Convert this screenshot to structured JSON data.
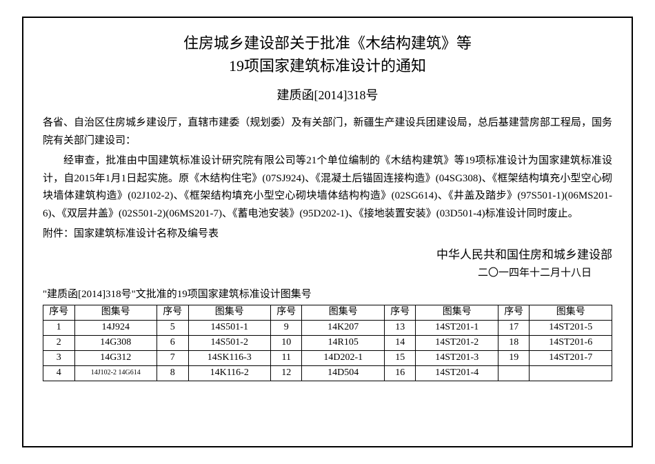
{
  "title": {
    "line1": "住房城乡建设部关于批准《木结构建筑》等",
    "line2": "19项国家建筑标准设计的通知"
  },
  "doc_number": "建质函[2014]318号",
  "recipients": "各省、自治区住房城乡建设厅，直辖市建委（规划委）及有关部门，新疆生产建设兵团建设局，总后基建营房部工程局，国务院有关部门建设司：",
  "body": "经审查，批准由中国建筑标准设计研究院有限公司等21个单位编制的《木结构建筑》等19项标准设计为国家建筑标准设计，自2015年1月1日起实施。原《木结构住宅》(07SJ924)、《混凝土后锚固连接构造》(04SG308)、《框架结构填充小型空心砌块墙体建筑构造》(02J102-2)、《框架结构填充小型空心砌块墙体结构构造》(02SG614)、《井盖及踏步》(97S501-1)(06MS201-6)、《双层井盖》(02S501-2)(06MS201-7)、《蓄电池安装》(95D202-1)、《接地装置安装》(03D501-4)标准设计同时废止。",
  "attachment": "附件：国家建筑标准设计名称及编号表",
  "signature": "中华人民共和国住房和城乡建设部",
  "date": "二〇一四年十二月十八日",
  "table_title": "\"建质函[2014]318号\"文批准的19项国家建筑标准设计图集号",
  "table": {
    "header_seq": "序号",
    "header_code": "图集号",
    "rows": [
      {
        "seq": "1",
        "code": "14J924"
      },
      {
        "seq": "2",
        "code": "14G308"
      },
      {
        "seq": "3",
        "code": "14G312"
      },
      {
        "seq": "4",
        "code": "14J102-2 14G614"
      },
      {
        "seq": "5",
        "code": "14S501-1"
      },
      {
        "seq": "6",
        "code": "14S501-2"
      },
      {
        "seq": "7",
        "code": "14SK116-3"
      },
      {
        "seq": "8",
        "code": "14K116-2"
      },
      {
        "seq": "9",
        "code": "14K207"
      },
      {
        "seq": "10",
        "code": "14R105"
      },
      {
        "seq": "11",
        "code": "14D202-1"
      },
      {
        "seq": "12",
        "code": "14D504"
      },
      {
        "seq": "13",
        "code": "14ST201-1"
      },
      {
        "seq": "14",
        "code": "14ST201-2"
      },
      {
        "seq": "15",
        "code": "14ST201-3"
      },
      {
        "seq": "16",
        "code": "14ST201-4"
      },
      {
        "seq": "17",
        "code": "14ST201-5"
      },
      {
        "seq": "18",
        "code": "14ST201-6"
      },
      {
        "seq": "19",
        "code": "14ST201-7"
      }
    ]
  }
}
